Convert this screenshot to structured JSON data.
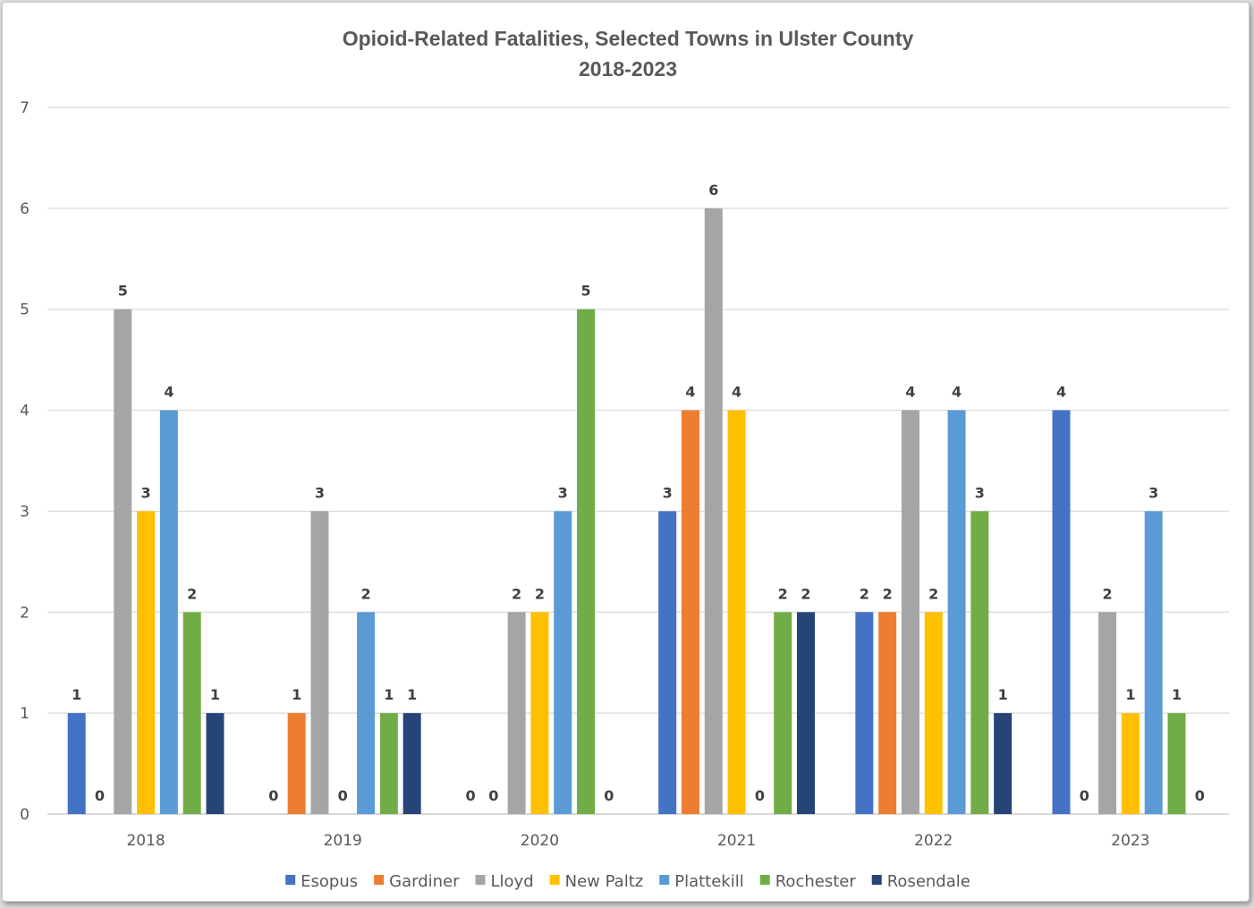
{
  "chart_data": {
    "type": "bar",
    "title": "Opioid-Related Fatalities, Selected Towns in Ulster County",
    "subtitle": "2018-2023",
    "xlabel": "",
    "ylabel": "",
    "ylim": [
      0,
      7
    ],
    "yticks": [
      "0",
      "1",
      "2",
      "3",
      "4",
      "5",
      "6",
      "7"
    ],
    "categories": [
      "2018",
      "2019",
      "2020",
      "2021",
      "2022",
      "2023"
    ],
    "grid": true,
    "legend_position": "bottom",
    "series": [
      {
        "name": "Esopus",
        "color": "#4472C4",
        "values": [
          1,
          0,
          0,
          3,
          2,
          4
        ]
      },
      {
        "name": "Gardiner",
        "color": "#ED7D31",
        "values": [
          0,
          1,
          0,
          4,
          2,
          0
        ]
      },
      {
        "name": "Lloyd",
        "color": "#A5A5A5",
        "values": [
          5,
          3,
          2,
          6,
          4,
          2
        ]
      },
      {
        "name": "New Paltz",
        "color": "#FFC000",
        "values": [
          3,
          0,
          2,
          4,
          2,
          1
        ]
      },
      {
        "name": "Plattekill",
        "color": "#5B9BD5",
        "values": [
          4,
          2,
          3,
          0,
          4,
          3
        ]
      },
      {
        "name": "Rochester",
        "color": "#70AD47",
        "values": [
          2,
          1,
          5,
          2,
          3,
          1
        ]
      },
      {
        "name": "Rosendale",
        "color": "#264478",
        "values": [
          1,
          1,
          0,
          2,
          1,
          0
        ]
      }
    ]
  }
}
